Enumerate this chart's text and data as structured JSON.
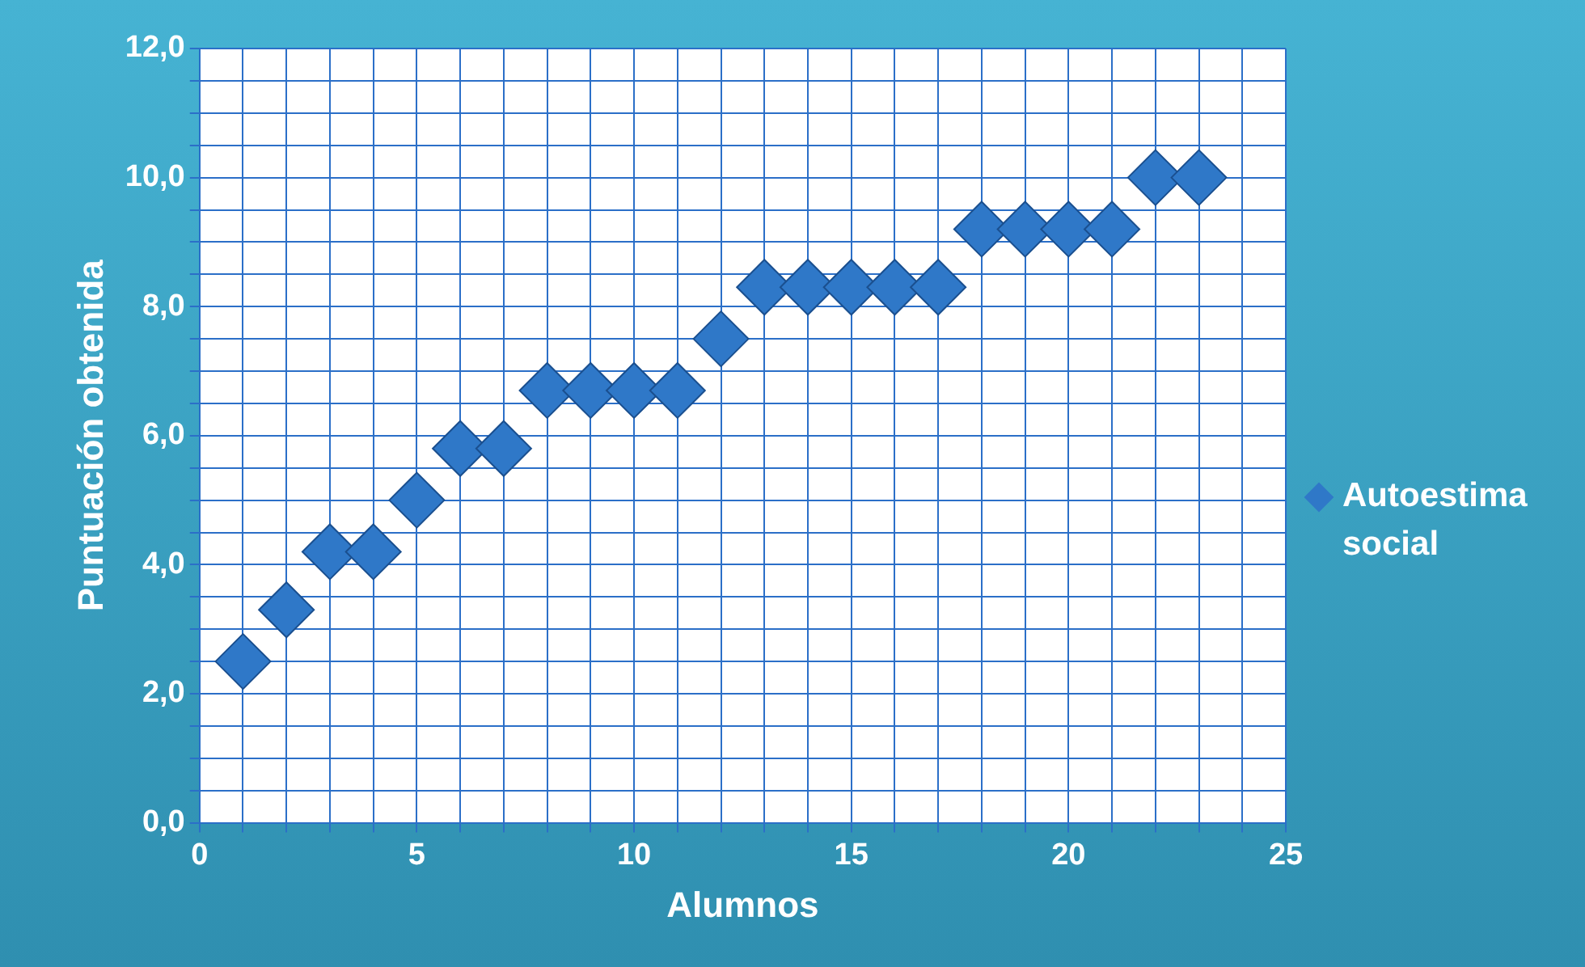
{
  "chart_data": {
    "type": "scatter",
    "xlabel": "Alumnos",
    "ylabel": "Puntuación obtenida",
    "x": [
      1,
      2,
      3,
      4,
      5,
      6,
      7,
      8,
      9,
      10,
      11,
      12,
      13,
      14,
      15,
      16,
      17,
      18,
      19,
      20,
      21,
      22,
      23
    ],
    "series": [
      {
        "name": "Autoestima social",
        "color": "#2f78c8",
        "values": [
          2.5,
          3.3,
          4.2,
          4.2,
          5.0,
          5.8,
          5.8,
          6.7,
          6.7,
          6.7,
          6.7,
          7.5,
          8.3,
          8.3,
          8.3,
          8.3,
          8.3,
          9.2,
          9.2,
          9.2,
          9.2,
          10.0,
          10.0
        ]
      }
    ],
    "xlim": [
      0,
      25
    ],
    "xticks": [
      0,
      {
        "value": 1,
        "label": null
      },
      {
        "value": 2,
        "label": null
      },
      {
        "value": 3,
        "label": null
      },
      {
        "value": 4,
        "label": null
      },
      5,
      {
        "value": 6,
        "label": null
      },
      {
        "value": 7,
        "label": null
      },
      {
        "value": 8,
        "label": null
      },
      {
        "value": 9,
        "label": null
      },
      10,
      {
        "value": 11,
        "label": null
      },
      {
        "value": 12,
        "label": null
      },
      {
        "value": 13,
        "label": null
      },
      {
        "value": 14,
        "label": null
      },
      15,
      {
        "value": 16,
        "label": null
      },
      {
        "value": 17,
        "label": null
      },
      {
        "value": 18,
        "label": null
      },
      {
        "value": 19,
        "label": null
      },
      20,
      {
        "value": 21,
        "label": null
      },
      {
        "value": 22,
        "label": null
      },
      {
        "value": 23,
        "label": null
      },
      {
        "value": 24,
        "label": null
      },
      25
    ],
    "ylim": [
      0,
      12
    ],
    "yticks": [
      {
        "value": 0,
        "label": "0,0"
      },
      {
        "value": 0.5,
        "label": null
      },
      {
        "value": 1,
        "label": null
      },
      {
        "value": 1.5,
        "label": null
      },
      {
        "value": 2,
        "label": "2,0"
      },
      {
        "value": 2.5,
        "label": null
      },
      {
        "value": 3,
        "label": null
      },
      {
        "value": 3.5,
        "label": null
      },
      {
        "value": 4,
        "label": "4,0"
      },
      {
        "value": 4.5,
        "label": null
      },
      {
        "value": 5,
        "label": null
      },
      {
        "value": 5.5,
        "label": null
      },
      {
        "value": 6,
        "label": "6,0"
      },
      {
        "value": 6.5,
        "label": null
      },
      {
        "value": 7,
        "label": null
      },
      {
        "value": 7.5,
        "label": null
      },
      {
        "value": 8,
        "label": "8,0"
      },
      {
        "value": 8.5,
        "label": null
      },
      {
        "value": 9,
        "label": null
      },
      {
        "value": 9.5,
        "label": null
      },
      {
        "value": 10,
        "label": "10,0"
      },
      {
        "value": 10.5,
        "label": null
      },
      {
        "value": 11,
        "label": null
      },
      {
        "value": 11.5,
        "label": null
      },
      {
        "value": 12,
        "label": "12,0"
      }
    ],
    "grid": true,
    "legend": "right",
    "marker": "diamond"
  }
}
